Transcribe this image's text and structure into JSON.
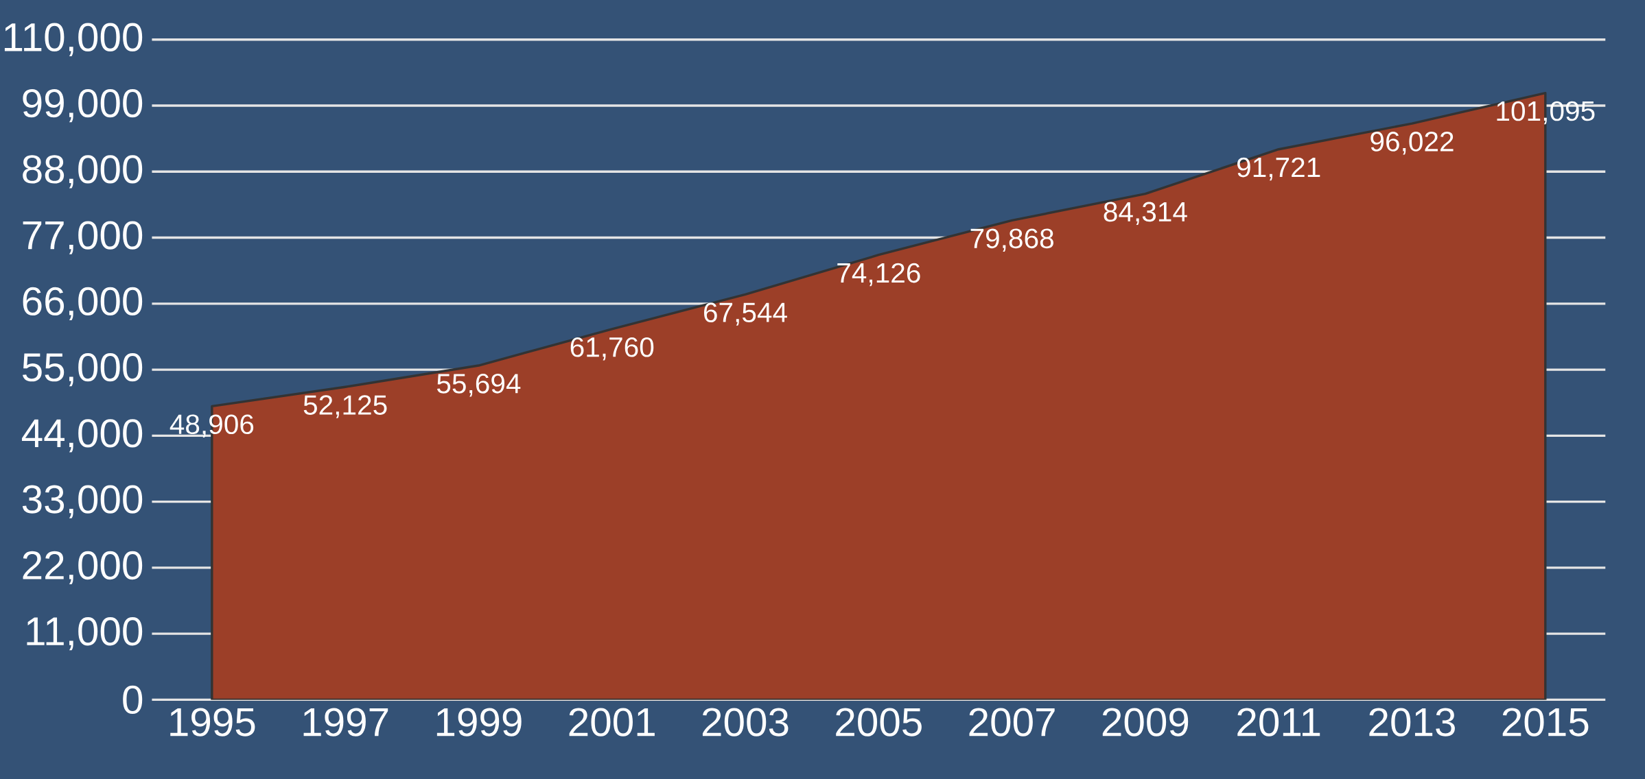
{
  "chart_data": {
    "type": "area",
    "categories": [
      "1995",
      "1997",
      "1999",
      "2001",
      "2003",
      "2005",
      "2007",
      "2009",
      "2011",
      "2013",
      "2015"
    ],
    "series": [
      {
        "color": "#9c3f28",
        "values": [
          48906,
          52125,
          55694,
          61760,
          67544,
          74126,
          79868,
          84314,
          91721,
          96022,
          101095
        ],
        "value_labels": [
          "48,906",
          "52,125",
          "55,694",
          "61,760",
          "67,544",
          "74,126",
          "79,868",
          "84,314",
          "91,721",
          "96,022",
          "101,095"
        ]
      }
    ],
    "ylim": [
      0,
      110000
    ],
    "yticks": [
      0,
      {
        "value": 11000,
        "label": "11,000"
      },
      {
        "value": 22000,
        "label": "22,000"
      },
      {
        "value": 33000,
        "label": "33,000"
      },
      {
        "value": 44000,
        "label": "44,000"
      },
      {
        "value": 55000,
        "label": "55,000"
      },
      {
        "value": 66000,
        "label": "66,000"
      },
      {
        "value": 77000,
        "label": "77,000"
      },
      {
        "value": 88000,
        "label": "88,000"
      },
      {
        "value": 99000,
        "label": "99,000"
      },
      {
        "value": 110000,
        "label": "110,000"
      }
    ],
    "grid": "y"
  }
}
